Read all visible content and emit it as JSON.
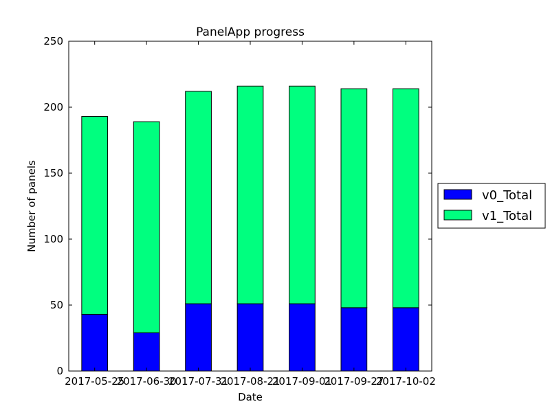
{
  "chart_data": {
    "type": "bar",
    "stacked": true,
    "title": "PanelApp progress",
    "xlabel": "Date",
    "ylabel": "Number of panels",
    "categories": [
      "2017-05-25",
      "2017-06-30",
      "2017-07-31",
      "2017-08-21",
      "2017-09-01",
      "2017-09-27",
      "2017-10-02"
    ],
    "series": [
      {
        "name": "v0_Total",
        "color": "#0000ff",
        "values": [
          43,
          29,
          51,
          51,
          51,
          48,
          48
        ]
      },
      {
        "name": "v1_Total",
        "color": "#00ff7f",
        "values": [
          150,
          160,
          161,
          165,
          165,
          166,
          166
        ]
      }
    ],
    "ylim": [
      0,
      250
    ],
    "yticks": [
      0,
      50,
      100,
      150,
      200,
      250
    ],
    "grid": false,
    "legend_position": "right-outside"
  }
}
